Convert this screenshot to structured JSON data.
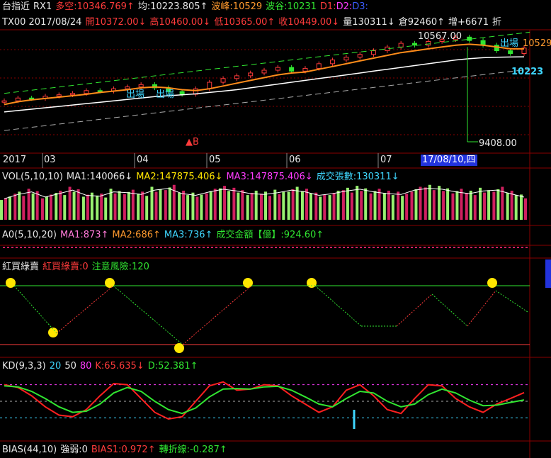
{
  "header": {
    "symbol": "台指近",
    "code": "RX1",
    "bull_bear": "多空:10346.769",
    "bull_bear_arrow": "↑",
    "avg": "均:10223.805",
    "avg_arrow": "↑",
    "wave_peak": "波峰:10529",
    "wave_trough": "波谷:10231",
    "d1": "D1:",
    "d2": "D2:",
    "d3": "D3:"
  },
  "quote": {
    "ticker_date": "TX00 2017/08/24",
    "open": "開10372.00",
    "open_arrow": "↓",
    "high": "高10460.00",
    "high_arrow": "↓",
    "low": "低10365.00",
    "low_arrow": "↑",
    "close": "收10449.00",
    "close_arrow": "↓",
    "volume": "量130311",
    "volume_arrow": "↓",
    "oi": "倉92460",
    "oi_arrow": "↑",
    "oi_change": "增+6671",
    "trailing": "折"
  },
  "price_panel": {
    "high_label": "10567.00",
    "low_label": "9408.00",
    "right_price": "10529",
    "last_price": "10223",
    "signal_exit_1": "出場",
    "signal_exit_2": "出場",
    "signal_exit_3": "出場",
    "buy_marker": "B",
    "months": [
      "2017",
      "03",
      "04",
      "05",
      "06",
      "07"
    ],
    "cursor_date": "17/08/10,四"
  },
  "vol_panel": {
    "name": "VOL(5,10,10)",
    "ma1": "MA1:140066",
    "ma1_arrow": "↓",
    "ma2": "MA2:147875.406",
    "ma2_arrow": "↓",
    "ma3": "MA3:147875.406",
    "ma3_arrow": "↓",
    "contracts": "成交張數:130311",
    "contracts_arrow": "↓"
  },
  "ao_panel": {
    "name": "A0(5,10,20)",
    "ma1": "MA1:873",
    "ma1_arrow": "↑",
    "ma2": "MA2:686",
    "ma2_arrow": "↑",
    "ma3": "MA3:736",
    "ma3_arrow": "↑",
    "amount": "成交金額【億】:924.60",
    "amount_arrow": "↑"
  },
  "rg_panel": {
    "name": "紅買綠賣",
    "rg": "紅買綠賣:0",
    "risk": "注意風險:120"
  },
  "kd_panel": {
    "name": "KD(9,3,3)",
    "lvl20": "20",
    "lvl50": "50",
    "lvl80": "80",
    "k": "K:65.635",
    "k_arrow": "↓",
    "d": "D:52.381",
    "d_arrow": "↑"
  },
  "bias_panel": {
    "name": "BIAS(44,10)",
    "strength": "強弱:0",
    "bias1": "BIAS1:0.972",
    "bias1_arrow": "↑",
    "turn": "轉折線:-0.287",
    "turn_arrow": "↑"
  },
  "colors": {
    "up": "#ff3b3b",
    "down": "#31e631",
    "ma_orange": "#ff8c1a",
    "ma_white": "#ffffff",
    "grid": "#8a0000",
    "accent": "#2233dd"
  },
  "chart_data": {
    "type": "line",
    "price_series": [
      {
        "name": "close",
        "values": [
          9880,
          9910,
          9905,
          9930,
          9945,
          9960,
          9990,
          9985,
          10010,
          10030,
          10055,
          10020,
          9980,
          9950,
          10010,
          10080,
          10120,
          10150,
          10180,
          10210,
          10240,
          10200,
          10230,
          10280,
          10320,
          10350,
          10380,
          10420,
          10460,
          10500,
          10480,
          10520,
          10540,
          10567,
          10530,
          10480,
          10420,
          10390,
          10449
        ]
      },
      {
        "name": "MA_orange",
        "values": [
          9840,
          9870,
          9890,
          9905,
          9920,
          9935,
          9950,
          9970,
          9985,
          10000,
          10020,
          10030,
          10020,
          10000,
          9990,
          10010,
          10040,
          10070,
          10100,
          10130,
          10160,
          10180,
          10190,
          10220,
          10250,
          10280,
          10310,
          10340,
          10370,
          10400,
          10420,
          10440,
          10460,
          10480,
          10490,
          10480,
          10460,
          10440,
          10440
        ]
      },
      {
        "name": "MA_white",
        "values": [
          9760,
          9775,
          9790,
          9805,
          9820,
          9835,
          9850,
          9865,
          9880,
          9895,
          9910,
          9925,
          9935,
          9945,
          9955,
          9970,
          9985,
          10000,
          10020,
          10040,
          10060,
          10080,
          10100,
          10120,
          10140,
          10160,
          10180,
          10200,
          10220,
          10240,
          10260,
          10280,
          10300,
          10320,
          10335,
          10345,
          10350,
          10352,
          10355
        ]
      }
    ],
    "volume": [
      120,
      145,
      160,
      130,
      150,
      170,
      140,
      135,
      160,
      155,
      145,
      170,
      180,
      150,
      140,
      160,
      175,
      165,
      150,
      145,
      155,
      170,
      160,
      140,
      150,
      165,
      175,
      160,
      150,
      145,
      170,
      180,
      175,
      160,
      150,
      165,
      170,
      150,
      130
    ],
    "kd": {
      "k": [
        80,
        75,
        60,
        40,
        25,
        22,
        35,
        60,
        82,
        80,
        55,
        30,
        18,
        22,
        50,
        78,
        85,
        70,
        72,
        80,
        78,
        60,
        45,
        30,
        40,
        70,
        80,
        60,
        35,
        28,
        55,
        80,
        78,
        55,
        40,
        30,
        45,
        55,
        65.635
      ],
      "d": [
        78,
        76,
        68,
        55,
        40,
        30,
        32,
        45,
        65,
        75,
        68,
        50,
        35,
        28,
        38,
        58,
        72,
        73,
        72,
        76,
        77,
        70,
        58,
        45,
        40,
        55,
        68,
        65,
        50,
        40,
        45,
        62,
        72,
        65,
        52,
        42,
        43,
        48,
        52.381
      ]
    },
    "kd_levels": [
      20,
      50,
      80
    ],
    "ylim_kd": [
      0,
      100
    ]
  }
}
